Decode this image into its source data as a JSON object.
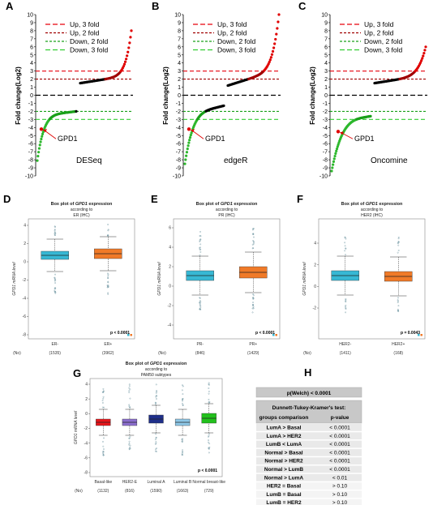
{
  "panels": [
    "A",
    "B",
    "C",
    "D",
    "E",
    "F",
    "G",
    "H"
  ],
  "colors": {
    "up3": "#e8000b",
    "up2": "#a00000",
    "down2": "#1aa01a",
    "down3": "#32cd32",
    "red_pts": "#e00000",
    "green_pts": "#2db82d",
    "black_pts": "#000000",
    "cyan": "#37b8d4",
    "orange": "#f07a28",
    "purple": "#8c6fcf",
    "navy": "#1f2f8a",
    "light_blue": "#8fc8e8",
    "green_box": "#22c01c",
    "red_box": "#e8161b"
  },
  "fold_charts": {
    "ylabel": "Fold change(Log2)",
    "yticks": [
      "10",
      "9",
      "8",
      "7",
      "6",
      "5",
      "4",
      "3",
      "2",
      "1",
      "0",
      "-1",
      "-2",
      "-3",
      "-4",
      "-5",
      "-6",
      "-7",
      "-8",
      "-9",
      "-10"
    ],
    "legend": [
      "Up, 3 fold",
      "Up, 2 fold",
      "Down, 2 fold",
      "Down, 3 fold"
    ],
    "gene_label": "GPD1",
    "methods": [
      "DESeq",
      "edgeR",
      "Oncomine"
    ]
  },
  "box_charts": {
    "title_prefix": "Box plot of",
    "gene": "GPD1",
    "title_suffix": "expression",
    "subtitle": "according to",
    "ylabel": "GPD1 mRNA level",
    "n_label": "(No)",
    "panels": [
      {
        "letter": "D",
        "group_title": "ER (IHC)",
        "categories": [
          "ER-",
          "ER+"
        ],
        "n": [
          "(1535)",
          "(3962)"
        ],
        "pvalue": "p < 0.0001",
        "yticks": [
          "4",
          "2",
          "0",
          "-2",
          "-4",
          "-6",
          "-8"
        ]
      },
      {
        "letter": "E",
        "group_title": "PR (IHC)",
        "categories": [
          "PR-",
          "PR+"
        ],
        "n": [
          "(846)",
          "(1429)"
        ],
        "pvalue": "p < 0.0001",
        "yticks": [
          "6",
          "4",
          "2",
          "0",
          "-2",
          "-4"
        ]
      },
      {
        "letter": "F",
        "group_title": "HER2 (IHC)",
        "categories": [
          "HER2-",
          "HER2+"
        ],
        "n": [
          "(1411)",
          "(168)"
        ],
        "pvalue": "p = 0.0043",
        "yticks": [
          "4",
          "2",
          "0",
          "-2"
        ]
      },
      {
        "letter": "G",
        "group_title": "PAM50 subtypes",
        "categories": [
          "Basal-like",
          "HER2-E",
          "Luminal A",
          "Luminal B",
          "Normal breast-like"
        ],
        "n": [
          "(1132)",
          "(816)",
          "(1590)",
          "(1663)",
          "(729)"
        ],
        "pvalue": "p < 0.0001",
        "yticks": [
          "4",
          "2",
          "0",
          "-2",
          "-4",
          "-6",
          "-8"
        ]
      }
    ]
  },
  "chart_data": [
    {
      "type": "scatter",
      "title": "",
      "method": "DESeq",
      "ylim": [
        -10,
        10
      ],
      "thresholds": [
        3,
        2,
        -2,
        -3
      ],
      "x": [],
      "values": []
    },
    {
      "type": "scatter",
      "title": "",
      "method": "edgeR",
      "ylim": [
        -10,
        10
      ],
      "thresholds": [
        3,
        2,
        -2,
        -3
      ],
      "x": [],
      "values": []
    },
    {
      "type": "scatter",
      "title": "",
      "method": "Oncomine",
      "ylim": [
        -10,
        10
      ],
      "thresholds": [
        3,
        2,
        -2,
        -3
      ],
      "x": [],
      "values": []
    },
    {
      "type": "box",
      "categories": [
        "ER-",
        "ER+"
      ],
      "medians": [
        0,
        0.2
      ]
    },
    {
      "type": "box",
      "categories": [
        "PR-",
        "PR+"
      ],
      "medians": [
        -0.2,
        0.1
      ]
    },
    {
      "type": "box",
      "categories": [
        "HER2-",
        "HER2+"
      ],
      "medians": [
        0,
        -0.1
      ]
    },
    {
      "type": "box",
      "categories": [
        "Basal-like",
        "HER2-E",
        "Luminal A",
        "Luminal B",
        "Normal breast-like"
      ],
      "medians": [
        0,
        0,
        0.4,
        0,
        0.5
      ]
    },
    {
      "type": "table",
      "header": "p(Welch) < 0.0001",
      "test_title": "Dunnett-Tukey-Kramer's test:",
      "columns": [
        "groups comparison",
        "p-value"
      ],
      "rows": [
        [
          "LumA > Basal",
          "< 0.0001"
        ],
        [
          "LumA > HER2",
          "< 0.0001"
        ],
        [
          "LumB < LumA",
          "< 0.0001"
        ],
        [
          "Normal > Basal",
          "< 0.0001"
        ],
        [
          "Normal > HER2",
          "< 0.0001"
        ],
        [
          "Normal > LumB",
          "< 0.0001"
        ],
        [
          "Normal > LumA",
          "< 0.01"
        ],
        [
          "HER2 = Basal",
          "> 0.10"
        ],
        [
          "LumB = Basal",
          "> 0.10"
        ],
        [
          "LumB = HER2",
          "> 0.10"
        ]
      ]
    }
  ]
}
